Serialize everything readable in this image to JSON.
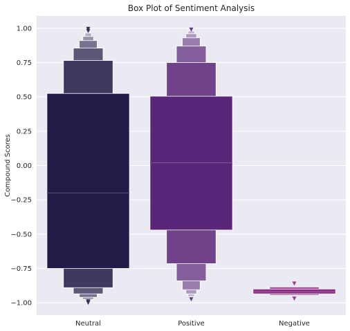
{
  "chart_data": {
    "type": "boxen",
    "title": "Box Plot of Sentiment Analysis",
    "xlabel": "",
    "ylabel": "Compound Scores",
    "ylim": [
      -1.09,
      1.09
    ],
    "yticks": [
      1.0,
      0.75,
      0.5,
      0.25,
      0.0,
      -0.25,
      -0.5,
      -0.75,
      -1.0
    ],
    "ytick_labels": [
      "1.00",
      "0.75",
      "0.50",
      "0.25",
      "0.00",
      "−0.25",
      "−0.50",
      "−0.75",
      "−1.00"
    ],
    "categories": [
      "Neutral",
      "Positive",
      "Negative"
    ],
    "grid": true,
    "background": "#eaeaf2",
    "series": [
      {
        "category": "Neutral",
        "color": "#241a47",
        "median": -0.2,
        "boxes": [
          [
            -0.75,
            0.525
          ],
          [
            -0.89,
            0.765
          ],
          [
            -0.935,
            0.855
          ],
          [
            -0.96,
            0.91
          ],
          [
            -0.975,
            0.94
          ],
          [
            -0.985,
            0.965
          ]
        ],
        "outliers_low": [
          -0.99,
          -1.0
        ],
        "outliers_high": [
          0.98,
          0.995
        ]
      },
      {
        "category": "Positive",
        "color": "#5a2679",
        "median": 0.02,
        "boxes": [
          [
            -0.47,
            0.505
          ],
          [
            -0.715,
            0.75
          ],
          [
            -0.84,
            0.87
          ],
          [
            -0.905,
            0.93
          ],
          [
            -0.935,
            0.96
          ],
          [
            -0.955,
            0.98
          ]
        ],
        "outliers_low": [
          -0.975
        ],
        "outliers_high": [
          0.99
        ]
      },
      {
        "category": "Negative",
        "color": "#8a2c83",
        "median": -0.92,
        "boxes": [
          [
            -0.935,
            -0.9
          ],
          [
            -0.945,
            -0.885
          ]
        ],
        "outliers_low": [
          -0.97
        ],
        "outliers_high": [
          -0.86
        ]
      }
    ]
  }
}
